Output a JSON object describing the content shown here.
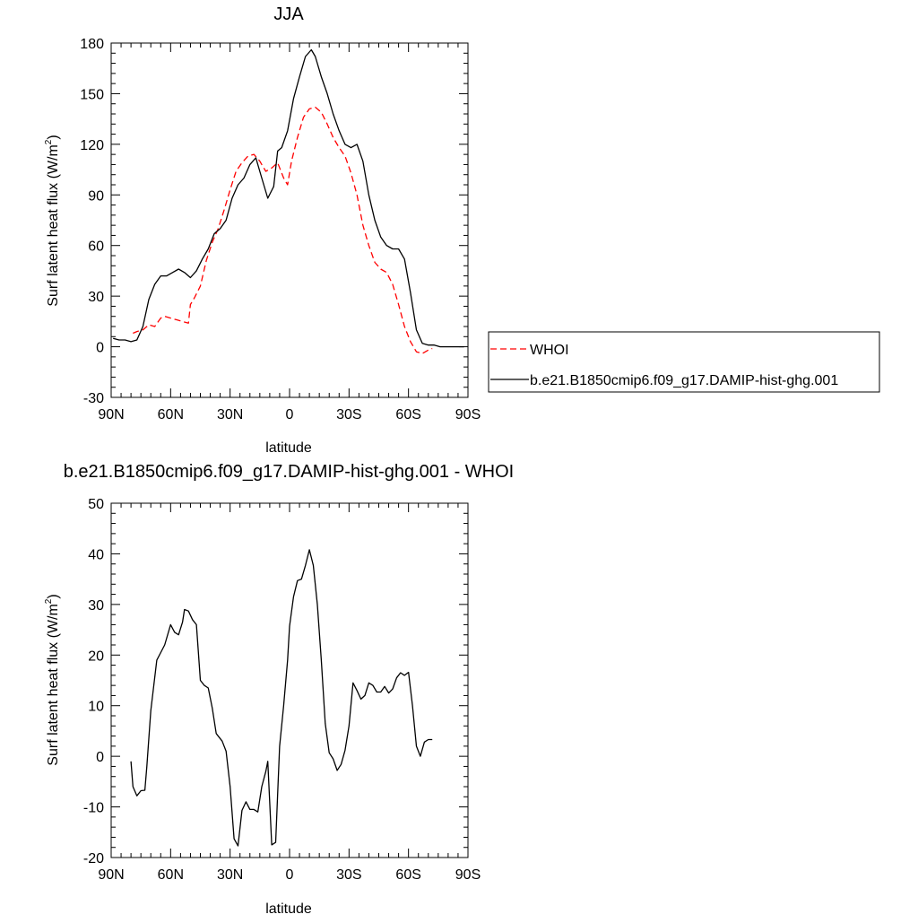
{
  "chart_data": [
    {
      "type": "line",
      "title": "JJA",
      "xlabel": "latitude",
      "ylabel": "Surf latent heat flux (W/m",
      "ylabel_sup": "2",
      "ylabel_close": ")",
      "xlim": [
        90,
        -90
      ],
      "ylim": [
        -30,
        180
      ],
      "x_tick_values": [
        90,
        60,
        30,
        0,
        -30,
        -60,
        -90
      ],
      "x_tick_labels": [
        "90N",
        "60N",
        "30N",
        "0",
        "30S",
        "60S",
        "90S"
      ],
      "y_tick_values": [
        -30,
        0,
        30,
        60,
        90,
        120,
        150,
        180
      ],
      "y_tick_labels": [
        "-30",
        "0",
        "30",
        "60",
        "90",
        "120",
        "150",
        "180"
      ],
      "legend_position": "right",
      "series": [
        {
          "name": "WHOI",
          "color": "#ff0000",
          "dash": "dashed",
          "x": [
            79,
            77,
            74,
            71,
            68,
            65,
            63,
            60,
            57,
            54,
            51,
            50,
            48,
            45,
            42,
            39,
            36,
            33,
            30,
            27,
            24,
            21,
            18,
            15,
            12,
            9,
            6,
            3,
            1,
            -1,
            -4,
            -7,
            -10,
            -13,
            -16,
            -19,
            -22,
            -25,
            -28,
            -31,
            -34,
            -37,
            -40,
            -43,
            -46,
            -49,
            -52,
            -55,
            -58,
            -61,
            -64,
            -67,
            -70,
            -72
          ],
          "values": [
            8,
            9,
            10,
            13,
            12,
            17,
            18,
            17,
            16,
            15,
            14,
            25,
            29,
            36,
            51,
            62,
            70,
            81,
            93,
            104,
            109,
            113,
            114,
            110,
            104,
            106,
            109,
            100,
            96,
            110,
            124,
            136,
            141,
            142,
            139,
            132,
            124,
            118,
            113,
            103,
            90,
            72,
            60,
            50,
            46,
            44,
            37,
            25,
            12,
            3,
            -3,
            -4,
            -2,
            -1
          ]
        },
        {
          "name": "b.e21.B1850cmip6.f09_g17.DAMIP-hist-ghg.001",
          "color": "#000000",
          "dash": "solid",
          "x": [
            89,
            86,
            83,
            80,
            77,
            74,
            71,
            68,
            65,
            62,
            59,
            56,
            53,
            50,
            47,
            44,
            41,
            38,
            35,
            32,
            29,
            26,
            23,
            20,
            17,
            14,
            11,
            8,
            6,
            4,
            1,
            -2,
            -5,
            -8,
            -11,
            -13,
            -16,
            -19,
            -22,
            -25,
            -28,
            -31,
            -34,
            -37,
            -40,
            -43,
            -46,
            -49,
            -52,
            -55,
            -58,
            -61,
            -64,
            -67,
            -70,
            -73,
            -76,
            -79,
            -82,
            -85,
            -88
          ],
          "values": [
            5,
            4,
            4,
            3,
            4,
            12,
            28,
            37,
            42,
            42,
            44,
            46,
            44,
            41,
            45,
            52,
            58,
            67,
            70,
            75,
            88,
            96,
            100,
            108,
            112,
            100,
            88,
            95,
            116,
            118,
            128,
            147,
            160,
            172,
            176,
            172,
            160,
            150,
            138,
            128,
            120,
            118,
            120,
            110,
            90,
            75,
            65,
            60,
            58,
            58,
            52,
            32,
            10,
            2,
            1,
            1,
            0,
            0,
            0,
            0,
            0
          ]
        }
      ]
    },
    {
      "type": "line",
      "title": "b.e21.B1850cmip6.f09_g17.DAMIP-hist-ghg.001 - WHOI",
      "xlabel": "latitude",
      "ylabel": "Surf latent heat flux (W/m",
      "ylabel_sup": "2",
      "ylabel_close": ")",
      "xlim": [
        90,
        -90
      ],
      "ylim": [
        -20,
        50
      ],
      "x_tick_values": [
        90,
        60,
        30,
        0,
        -30,
        -60,
        -90
      ],
      "x_tick_labels": [
        "90N",
        "60N",
        "30N",
        "0",
        "30S",
        "60S",
        "90S"
      ],
      "y_tick_values": [
        -20,
        -10,
        0,
        10,
        20,
        30,
        40,
        50
      ],
      "y_tick_labels": [
        "-20",
        "-10",
        "0",
        "10",
        "20",
        "30",
        "40",
        "50"
      ],
      "series": [
        {
          "color": "#000000",
          "dash": "solid",
          "x": [
            80,
            79,
            77,
            75,
            73,
            72,
            70,
            67,
            65,
            63,
            60,
            58,
            56,
            54,
            53,
            51,
            49,
            47,
            45,
            43,
            41,
            39,
            37,
            34,
            32,
            30,
            28,
            26,
            24,
            22,
            20,
            18,
            16,
            14,
            12,
            11,
            9,
            7,
            5,
            3,
            1,
            0,
            -2,
            -4,
            -6,
            -8,
            -10,
            -12,
            -14,
            -16,
            -18,
            -20,
            -22,
            -24,
            -26,
            -28,
            -30,
            -32,
            -34,
            -36,
            -38,
            -40,
            -42,
            -44,
            -46,
            -48,
            -50,
            -52,
            -54,
            -56,
            -58,
            -60,
            -62,
            -64,
            -66,
            -68,
            -70,
            -72
          ],
          "values": [
            -1,
            -6,
            -7.8,
            -6.8,
            -6.7,
            -2,
            9,
            19,
            20.5,
            22,
            26,
            24.5,
            24,
            26.5,
            29,
            28.7,
            27,
            26,
            15,
            14,
            13.5,
            9.5,
            4.5,
            3,
            1,
            -6,
            -16.3,
            -17.7,
            -10.7,
            -9,
            -10.5,
            -10.5,
            -11,
            -6,
            -3,
            -1,
            -17.5,
            -17,
            2,
            10,
            19,
            25.7,
            31.5,
            34.7,
            35,
            37.7,
            40.8,
            37.7,
            30,
            19,
            6.5,
            0.7,
            -0.5,
            -2.8,
            -1.6,
            1.2,
            6,
            14.5,
            13,
            11.3,
            12,
            14.5,
            14,
            12.7,
            12.7,
            13.8,
            12.5,
            13.3,
            15.5,
            16.5,
            16,
            16.6,
            10,
            2,
            0,
            2.8,
            3.3,
            3.3
          ]
        }
      ]
    }
  ]
}
